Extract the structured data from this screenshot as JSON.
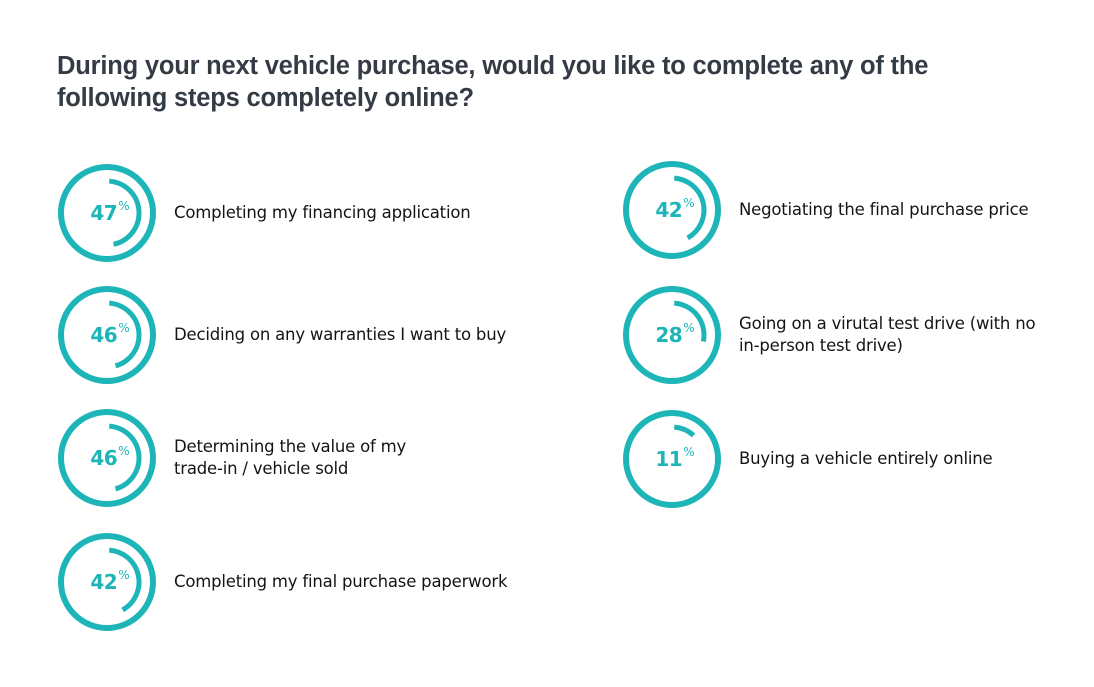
{
  "title": "During your next  vehicle purchase, would you like to complete any of the following steps completely online?",
  "colors": {
    "accent": "#1db5b8",
    "title": "#343b44",
    "label": "#141414"
  },
  "items": [
    {
      "value": 47,
      "value_label": "47",
      "percent_symbol": "%",
      "label": "Completing my financing application"
    },
    {
      "value": 46,
      "value_label": "46",
      "percent_symbol": "%",
      "label": "Deciding on any warranties I want to buy"
    },
    {
      "value": 46,
      "value_label": "46",
      "percent_symbol": "%",
      "label": "Determining the value of my trade-in / vehicle sold"
    },
    {
      "value": 42,
      "value_label": "42",
      "percent_symbol": "%",
      "label": "Completing my final purchase paperwork"
    },
    {
      "value": 42,
      "value_label": "42",
      "percent_symbol": "%",
      "label": "Negotiating the final purchase price"
    },
    {
      "value": 28,
      "value_label": "28",
      "percent_symbol": "%",
      "label": "Going on a virutal test drive (with no in-person test drive)"
    },
    {
      "value": 11,
      "value_label": "11",
      "percent_symbol": "%",
      "label": "Buying a vehicle entirely online"
    }
  ],
  "chart_data": {
    "type": "pie",
    "subtype": "radial-progress",
    "title": "During your next  vehicle purchase, would you like to complete any of the following steps completely online?",
    "categories": [
      "Completing my financing application",
      "Deciding on any warranties I want to buy",
      "Determining the value of my trade-in / vehicle sold",
      "Completing my final purchase paperwork",
      "Negotiating the final purchase price",
      "Going on a virutal test drive (with no in-person test drive)",
      "Buying a vehicle entirely online"
    ],
    "values": [
      47,
      46,
      46,
      42,
      42,
      28,
      11
    ],
    "unit": "%",
    "xlabel": "",
    "ylabel": "",
    "ylim": [
      0,
      100
    ],
    "legend": "none",
    "grid": false
  }
}
